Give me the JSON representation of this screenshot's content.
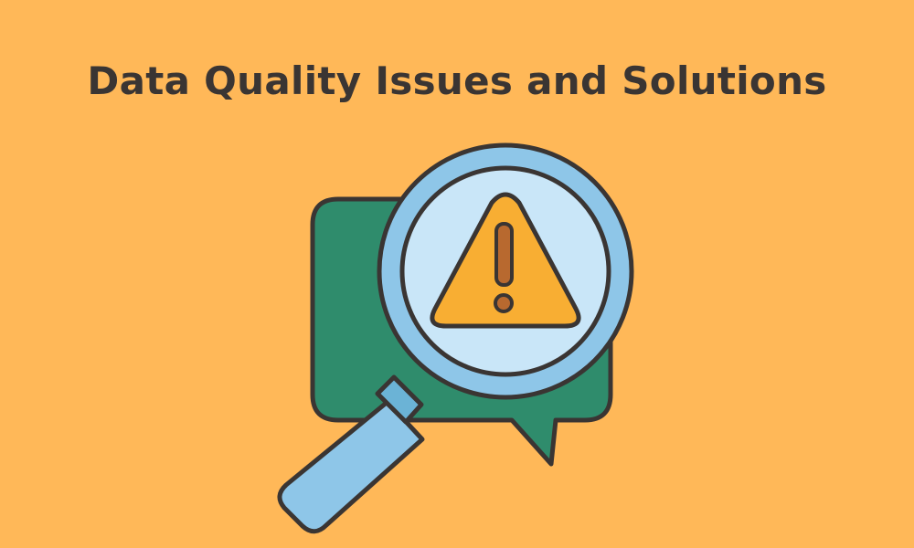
{
  "title": "Data Quality Issues and Solutions",
  "colors": {
    "background": "#FFB858",
    "outline": "#3A3533",
    "speech_bubble": "#2F8C6C",
    "lens_rim": "#8EC6E8",
    "lens_glass": "#C9E6F8",
    "handle": "#8EC6E8",
    "handle_collar": "#6BB3D6",
    "warning_fill": "#F8AE33",
    "exclamation": "#B8692F"
  },
  "icons": [
    "speech-bubble-icon",
    "magnifying-glass-icon",
    "warning-triangle-icon"
  ]
}
